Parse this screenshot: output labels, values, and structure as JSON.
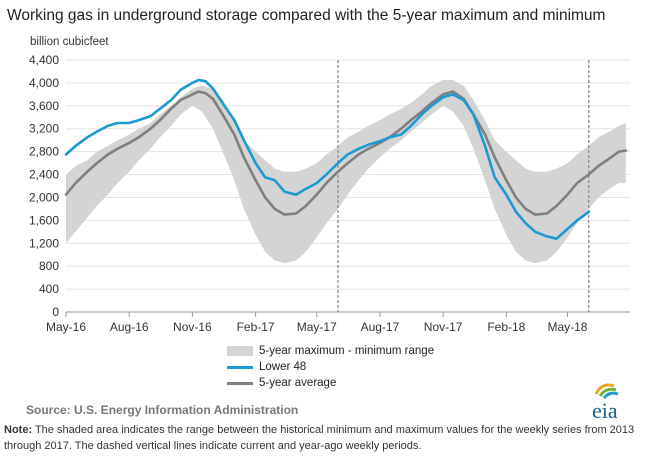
{
  "title": "Working gas in underground  storage compared with the 5-year maximum and minimum",
  "units": "billion cubicfeet",
  "legend": {
    "range": "5-year maximum - minimum range",
    "lower48": "Lower 48",
    "average": "5-year average"
  },
  "source": "Source:  U.S. Energy Information Administration",
  "note_label": "Note:",
  "note_text": " The shaded area indicates the range between the historical minimum and maximum values for the weekly series from 2013 through 2017. The dashed vertical lines indicate current and year-ago weekly periods.",
  "logo_text": "eia",
  "colors": {
    "range": "#d4d4d4",
    "lower48": "#1b9ad2",
    "average": "#7f7f7f",
    "axis": "#9a9a9a"
  },
  "chart_data": {
    "type": "area",
    "ylim": [
      0,
      4400
    ],
    "yticks": [
      0,
      400,
      800,
      1200,
      1600,
      2000,
      2400,
      2800,
      3200,
      3600,
      4000,
      4400
    ],
    "ytick_labels": [
      "0",
      "400",
      "800",
      "1,200",
      "1,600",
      "2,000",
      "2,400",
      "2,800",
      "3,200",
      "3,600",
      "4,000",
      "4,400"
    ],
    "xlim": [
      "2016-05-01",
      "2018-07-31"
    ],
    "xticks": [
      "2016-05-01",
      "2016-08-01",
      "2016-11-01",
      "2017-02-01",
      "2017-05-01",
      "2017-08-01",
      "2017-11-01",
      "2018-02-01",
      "2018-05-01"
    ],
    "xtick_labels": [
      "May-16",
      "Aug-16",
      "Nov-16",
      "Feb-17",
      "May-17",
      "Aug-17",
      "Nov-17",
      "Feb-18",
      "May-18"
    ],
    "dashed_lines": [
      "2017-06-01",
      "2018-06-01"
    ],
    "series": [
      {
        "name": "5-year maximum - minimum range",
        "type": "band",
        "x": [
          "2016-05-01",
          "2016-05-15",
          "2016-06-01",
          "2016-06-15",
          "2016-07-01",
          "2016-07-15",
          "2016-08-01",
          "2016-08-15",
          "2016-09-01",
          "2016-09-15",
          "2016-10-01",
          "2016-10-15",
          "2016-11-01",
          "2016-11-15",
          "2016-12-01",
          "2016-12-15",
          "2017-01-01",
          "2017-01-15",
          "2017-02-01",
          "2017-02-15",
          "2017-03-01",
          "2017-03-15",
          "2017-04-01",
          "2017-04-15",
          "2017-05-01",
          "2017-05-15",
          "2017-06-01",
          "2017-06-15",
          "2017-07-01",
          "2017-07-15",
          "2017-08-01",
          "2017-08-15",
          "2017-09-01",
          "2017-09-15",
          "2017-10-01",
          "2017-10-15",
          "2017-11-01",
          "2017-11-15",
          "2017-12-01",
          "2017-12-15",
          "2018-01-01",
          "2018-01-15",
          "2018-02-01",
          "2018-02-15",
          "2018-03-01",
          "2018-03-15",
          "2018-04-01",
          "2018-04-15",
          "2018-05-01",
          "2018-05-15",
          "2018-06-01",
          "2018-06-15",
          "2018-07-01",
          "2018-07-15",
          "2018-07-25"
        ],
        "upper": [
          2400,
          2550,
          2650,
          2800,
          2900,
          3000,
          3100,
          3200,
          3300,
          3450,
          3600,
          3750,
          3900,
          3950,
          3900,
          3700,
          3350,
          3000,
          2800,
          2650,
          2500,
          2450,
          2450,
          2500,
          2600,
          2750,
          2900,
          3050,
          3150,
          3250,
          3350,
          3450,
          3550,
          3650,
          3800,
          3950,
          4050,
          4050,
          3950,
          3700,
          3350,
          3000,
          2800,
          2650,
          2500,
          2450,
          2450,
          2500,
          2600,
          2750,
          2900,
          3050,
          3150,
          3250,
          3300
        ],
        "lower": [
          1200,
          1400,
          1650,
          1850,
          2050,
          2250,
          2450,
          2650,
          2850,
          3050,
          3250,
          3450,
          3600,
          3500,
          3200,
          2800,
          2300,
          1800,
          1350,
          1050,
          900,
          850,
          900,
          1050,
          1300,
          1550,
          1800,
          2050,
          2300,
          2500,
          2700,
          2850,
          3000,
          3150,
          3300,
          3450,
          3600,
          3500,
          3250,
          2850,
          2300,
          1800,
          1350,
          1050,
          900,
          850,
          900,
          1050,
          1300,
          1550,
          1800,
          2000,
          2150,
          2250,
          2250
        ]
      },
      {
        "name": "Lower 48",
        "type": "line",
        "x": [
          "2016-05-01",
          "2016-05-15",
          "2016-06-01",
          "2016-06-15",
          "2016-07-01",
          "2016-07-15",
          "2016-08-01",
          "2016-08-15",
          "2016-09-01",
          "2016-09-15",
          "2016-10-01",
          "2016-10-15",
          "2016-11-01",
          "2016-11-10",
          "2016-11-20",
          "2016-12-01",
          "2016-12-15",
          "2017-01-01",
          "2017-01-15",
          "2017-02-01",
          "2017-02-15",
          "2017-03-01",
          "2017-03-15",
          "2017-04-01",
          "2017-04-15",
          "2017-05-01",
          "2017-05-15",
          "2017-06-01",
          "2017-06-15",
          "2017-07-01",
          "2017-07-15",
          "2017-08-01",
          "2017-08-15",
          "2017-09-01",
          "2017-09-15",
          "2017-10-01",
          "2017-10-15",
          "2017-11-01",
          "2017-11-15",
          "2017-12-01",
          "2017-12-15",
          "2018-01-01",
          "2018-01-15",
          "2018-02-01",
          "2018-02-15",
          "2018-03-01",
          "2018-03-15",
          "2018-04-01",
          "2018-04-15",
          "2018-05-01",
          "2018-05-15",
          "2018-06-01"
        ],
        "values": [
          2750,
          2900,
          3050,
          3150,
          3250,
          3300,
          3300,
          3350,
          3420,
          3550,
          3700,
          3880,
          4000,
          4050,
          4030,
          3900,
          3650,
          3350,
          3000,
          2600,
          2350,
          2300,
          2100,
          2050,
          2150,
          2250,
          2400,
          2600,
          2750,
          2850,
          2920,
          2980,
          3050,
          3100,
          3250,
          3450,
          3600,
          3750,
          3800,
          3700,
          3450,
          2900,
          2350,
          2050,
          1750,
          1550,
          1400,
          1320,
          1280,
          1450,
          1600,
          1750
        ]
      },
      {
        "name": "5-year average",
        "type": "line",
        "x": [
          "2016-05-01",
          "2016-05-15",
          "2016-06-01",
          "2016-06-15",
          "2016-07-01",
          "2016-07-15",
          "2016-08-01",
          "2016-08-15",
          "2016-09-01",
          "2016-09-15",
          "2016-10-01",
          "2016-10-15",
          "2016-11-01",
          "2016-11-10",
          "2016-11-20",
          "2016-12-01",
          "2016-12-15",
          "2017-01-01",
          "2017-01-15",
          "2017-02-01",
          "2017-02-15",
          "2017-03-01",
          "2017-03-15",
          "2017-04-01",
          "2017-04-15",
          "2017-05-01",
          "2017-05-15",
          "2017-06-01",
          "2017-06-15",
          "2017-07-01",
          "2017-07-15",
          "2017-08-01",
          "2017-08-15",
          "2017-09-01",
          "2017-09-15",
          "2017-10-01",
          "2017-10-15",
          "2017-11-01",
          "2017-11-15",
          "2017-12-01",
          "2017-12-15",
          "2018-01-01",
          "2018-01-15",
          "2018-02-01",
          "2018-02-15",
          "2018-03-01",
          "2018-03-15",
          "2018-04-01",
          "2018-04-15",
          "2018-05-01",
          "2018-05-15",
          "2018-06-01",
          "2018-06-15",
          "2018-07-01",
          "2018-07-15",
          "2018-07-25"
        ],
        "values": [
          2050,
          2250,
          2450,
          2600,
          2750,
          2850,
          2950,
          3050,
          3200,
          3350,
          3550,
          3700,
          3800,
          3850,
          3820,
          3720,
          3450,
          3100,
          2700,
          2300,
          2000,
          1800,
          1700,
          1720,
          1850,
          2050,
          2250,
          2450,
          2600,
          2750,
          2850,
          2950,
          3050,
          3200,
          3350,
          3500,
          3650,
          3800,
          3850,
          3720,
          3450,
          3100,
          2700,
          2300,
          2000,
          1800,
          1700,
          1720,
          1850,
          2050,
          2250,
          2400,
          2550,
          2680,
          2800,
          2820
        ]
      }
    ]
  }
}
